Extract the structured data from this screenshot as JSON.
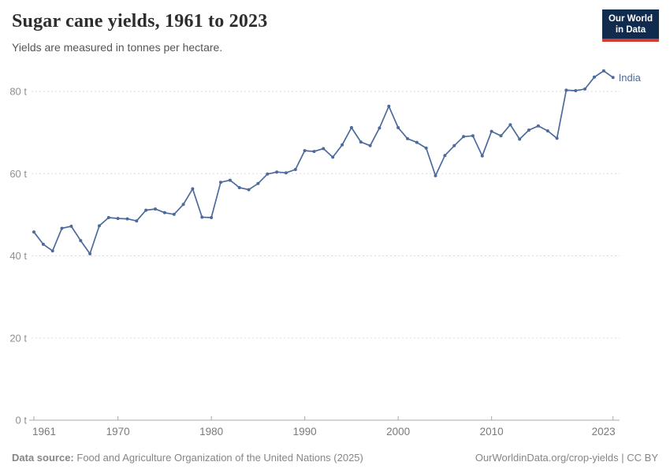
{
  "header": {
    "title": "Sugar cane yields, 1961 to 2023",
    "subtitle": "Yields are measured in tonnes per hectare.",
    "logo": {
      "line1": "Our World",
      "line2": "in Data",
      "bg_color": "#112b4e",
      "bar_color": "#d13d33"
    }
  },
  "chart_data": {
    "type": "line",
    "title": "Sugar cane yields, 1961 to 2023",
    "subtitle": "Yields are measured in tonnes per hectare.",
    "entity_label": "India",
    "unit": "tonnes per hectare",
    "line_color": "#4c6a9c",
    "grid": "horizontal dashed",
    "legend_position": "end-of-line label",
    "xlabel": "",
    "ylabel": "",
    "ylim": [
      0,
      86
    ],
    "xlim": [
      1961,
      2023
    ],
    "yticks": [
      0,
      20,
      40,
      60,
      80
    ],
    "ytick_labels": [
      "0 t",
      "20 t",
      "40 t",
      "60 t",
      "80 t"
    ],
    "xticks": [
      1961,
      1970,
      1980,
      1990,
      2000,
      2010,
      2023
    ],
    "xtick_labels": [
      "1961",
      "1970",
      "1980",
      "1990",
      "2000",
      "2010",
      "2023"
    ],
    "x": [
      1961,
      1962,
      1963,
      1964,
      1965,
      1966,
      1967,
      1968,
      1969,
      1970,
      1971,
      1972,
      1973,
      1974,
      1975,
      1976,
      1977,
      1978,
      1979,
      1980,
      1981,
      1982,
      1983,
      1984,
      1985,
      1986,
      1987,
      1988,
      1989,
      1990,
      1991,
      1992,
      1993,
      1994,
      1995,
      1996,
      1997,
      1998,
      1999,
      2000,
      2001,
      2002,
      2003,
      2004,
      2005,
      2006,
      2007,
      2008,
      2009,
      2010,
      2011,
      2012,
      2013,
      2014,
      2015,
      2016,
      2017,
      2018,
      2019,
      2020,
      2021,
      2022,
      2023
    ],
    "series": [
      {
        "name": "India",
        "values": [
          45.8,
          42.8,
          41.2,
          46.7,
          47.2,
          43.7,
          40.5,
          47.3,
          49.3,
          49.1,
          49.0,
          48.5,
          51.1,
          51.4,
          50.5,
          50.1,
          52.5,
          56.3,
          49.4,
          49.3,
          57.9,
          58.4,
          56.6,
          56.1,
          57.6,
          59.9,
          60.4,
          60.2,
          61.0,
          65.6,
          65.4,
          66.1,
          64.0,
          67.0,
          71.2,
          67.7,
          66.8,
          71.1,
          76.4,
          71.2,
          68.5,
          67.6,
          66.2,
          59.5,
          64.4,
          66.8,
          69.0,
          69.2,
          64.3,
          70.3,
          69.2,
          71.9,
          68.4,
          70.6,
          71.6,
          70.4,
          68.6,
          80.3,
          80.2,
          80.6,
          83.5,
          85.0,
          83.4
        ]
      }
    ]
  },
  "footer": {
    "source_label": "Data source:",
    "source_text": "Food and Agriculture Organization of the United Nations (2025)",
    "right_text": "OurWorldinData.org/crop-yields | CC BY"
  }
}
